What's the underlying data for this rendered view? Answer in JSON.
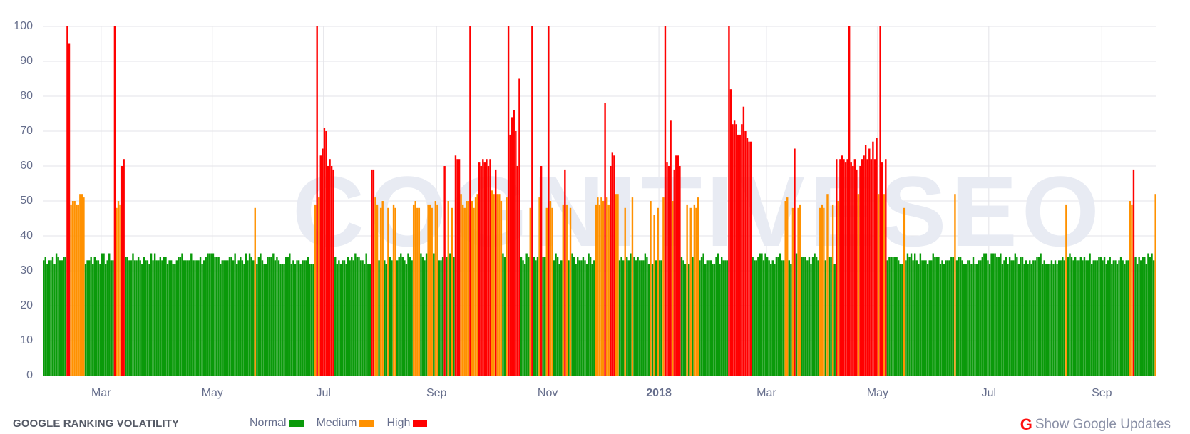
{
  "footer": {
    "title": "GOOGLE RANKING VOLATILITY",
    "show_updates_label": "Show Google Updates",
    "show_updates_icon": "google-g-icon"
  },
  "legend": [
    {
      "label": "Normal",
      "color": "#0a9a0a"
    },
    {
      "label": "Medium",
      "color": "#ff9100"
    },
    {
      "label": "High",
      "color": "#ff0000"
    }
  ],
  "watermark": "COGNITIVESEO",
  "chart_data": {
    "type": "bar",
    "title": "Google Ranking Volatility",
    "xlabel": "",
    "ylabel": "",
    "ylim": [
      0,
      100
    ],
    "yticks": [
      0,
      10,
      20,
      30,
      40,
      50,
      60,
      70,
      80,
      90,
      100
    ],
    "grid": true,
    "legend_position": "bottom",
    "x_range": [
      "2017-01-28",
      "2018-09-30"
    ],
    "xticks": [
      {
        "label": "Mar",
        "date": "2017-03-01"
      },
      {
        "label": "May",
        "date": "2017-05-01"
      },
      {
        "label": "Jul",
        "date": "2017-07-01"
      },
      {
        "label": "Sep",
        "date": "2017-09-01"
      },
      {
        "label": "Nov",
        "date": "2017-11-01"
      },
      {
        "label": "2018",
        "date": "2018-01-01",
        "bold": true
      },
      {
        "label": "Mar",
        "date": "2018-03-01"
      },
      {
        "label": "May",
        "date": "2018-05-01"
      },
      {
        "label": "Jul",
        "date": "2018-07-01"
      },
      {
        "label": "Sep",
        "date": "2018-09-01"
      }
    ],
    "thresholds": {
      "normal_max": 35,
      "medium_max": 58
    },
    "series": [
      {
        "name": "Normal",
        "color": "#0a9a0a"
      },
      {
        "name": "Medium",
        "color": "#ff9100"
      },
      {
        "name": "High",
        "color": "#ff0000"
      }
    ],
    "baseline_range": [
      32,
      35
    ],
    "spikes": [
      {
        "date": "2017-02-10",
        "value": 100
      },
      {
        "date": "2017-02-11",
        "value": 95
      },
      {
        "date": "2017-02-12",
        "value": 49
      },
      {
        "date": "2017-02-13",
        "value": 50
      },
      {
        "date": "2017-02-14",
        "value": 50
      },
      {
        "date": "2017-02-15",
        "value": 49
      },
      {
        "date": "2017-02-16",
        "value": 49
      },
      {
        "date": "2017-02-17",
        "value": 52
      },
      {
        "date": "2017-02-18",
        "value": 52
      },
      {
        "date": "2017-02-19",
        "value": 51
      },
      {
        "date": "2017-03-08",
        "value": 100
      },
      {
        "date": "2017-03-09",
        "value": 48
      },
      {
        "date": "2017-03-10",
        "value": 50
      },
      {
        "date": "2017-03-11",
        "value": 49
      },
      {
        "date": "2017-03-12",
        "value": 60
      },
      {
        "date": "2017-03-13",
        "value": 62
      },
      {
        "date": "2017-05-24",
        "value": 48
      },
      {
        "date": "2017-06-26",
        "value": 49
      },
      {
        "date": "2017-06-27",
        "value": 100
      },
      {
        "date": "2017-06-28",
        "value": 51
      },
      {
        "date": "2017-06-29",
        "value": 63
      },
      {
        "date": "2017-06-30",
        "value": 65
      },
      {
        "date": "2017-07-01",
        "value": 71
      },
      {
        "date": "2017-07-02",
        "value": 70
      },
      {
        "date": "2017-07-03",
        "value": 60
      },
      {
        "date": "2017-07-04",
        "value": 62
      },
      {
        "date": "2017-07-05",
        "value": 60
      },
      {
        "date": "2017-07-06",
        "value": 59
      },
      {
        "date": "2017-07-27",
        "value": 59
      },
      {
        "date": "2017-07-28",
        "value": 59
      },
      {
        "date": "2017-07-29",
        "value": 51
      },
      {
        "date": "2017-07-30",
        "value": 49
      },
      {
        "date": "2017-08-01",
        "value": 48
      },
      {
        "date": "2017-08-02",
        "value": 50
      },
      {
        "date": "2017-08-05",
        "value": 48
      },
      {
        "date": "2017-08-08",
        "value": 49
      },
      {
        "date": "2017-08-09",
        "value": 48
      },
      {
        "date": "2017-08-19",
        "value": 49
      },
      {
        "date": "2017-08-20",
        "value": 50
      },
      {
        "date": "2017-08-21",
        "value": 48
      },
      {
        "date": "2017-08-22",
        "value": 48
      },
      {
        "date": "2017-08-27",
        "value": 49
      },
      {
        "date": "2017-08-28",
        "value": 49
      },
      {
        "date": "2017-08-29",
        "value": 48
      },
      {
        "date": "2017-08-31",
        "value": 50
      },
      {
        "date": "2017-09-01",
        "value": 49
      },
      {
        "date": "2017-09-05",
        "value": 60
      },
      {
        "date": "2017-09-07",
        "value": 50
      },
      {
        "date": "2017-09-09",
        "value": 48
      },
      {
        "date": "2017-09-11",
        "value": 63
      },
      {
        "date": "2017-09-12",
        "value": 62
      },
      {
        "date": "2017-09-13",
        "value": 62
      },
      {
        "date": "2017-09-14",
        "value": 52
      },
      {
        "date": "2017-09-15",
        "value": 49
      },
      {
        "date": "2017-09-16",
        "value": 48
      },
      {
        "date": "2017-09-17",
        "value": 50
      },
      {
        "date": "2017-09-18",
        "value": 50
      },
      {
        "date": "2017-09-19",
        "value": 100
      },
      {
        "date": "2017-09-20",
        "value": 50
      },
      {
        "date": "2017-09-21",
        "value": 48
      },
      {
        "date": "2017-09-22",
        "value": 51
      },
      {
        "date": "2017-09-23",
        "value": 52
      },
      {
        "date": "2017-09-24",
        "value": 61
      },
      {
        "date": "2017-09-25",
        "value": 60
      },
      {
        "date": "2017-09-26",
        "value": 62
      },
      {
        "date": "2017-09-27",
        "value": 61
      },
      {
        "date": "2017-09-28",
        "value": 62
      },
      {
        "date": "2017-09-29",
        "value": 60
      },
      {
        "date": "2017-09-30",
        "value": 62
      },
      {
        "date": "2017-10-01",
        "value": 53
      },
      {
        "date": "2017-10-02",
        "value": 52
      },
      {
        "date": "2017-10-03",
        "value": 59
      },
      {
        "date": "2017-10-04",
        "value": 52
      },
      {
        "date": "2017-10-05",
        "value": 52
      },
      {
        "date": "2017-10-06",
        "value": 50
      },
      {
        "date": "2017-10-09",
        "value": 51
      },
      {
        "date": "2017-10-10",
        "value": 100
      },
      {
        "date": "2017-10-11",
        "value": 69
      },
      {
        "date": "2017-10-12",
        "value": 74
      },
      {
        "date": "2017-10-13",
        "value": 76
      },
      {
        "date": "2017-10-14",
        "value": 70
      },
      {
        "date": "2017-10-15",
        "value": 60
      },
      {
        "date": "2017-10-16",
        "value": 85
      },
      {
        "date": "2017-10-22",
        "value": 48
      },
      {
        "date": "2017-10-23",
        "value": 100
      },
      {
        "date": "2017-10-27",
        "value": 51
      },
      {
        "date": "2017-10-28",
        "value": 60
      },
      {
        "date": "2017-10-31",
        "value": 48
      },
      {
        "date": "2017-11-01",
        "value": 100
      },
      {
        "date": "2017-11-02",
        "value": 50
      },
      {
        "date": "2017-11-03",
        "value": 48
      },
      {
        "date": "2017-11-09",
        "value": 49
      },
      {
        "date": "2017-11-10",
        "value": 59
      },
      {
        "date": "2017-11-11",
        "value": 49
      },
      {
        "date": "2017-11-13",
        "value": 48
      },
      {
        "date": "2017-11-27",
        "value": 49
      },
      {
        "date": "2017-11-28",
        "value": 51
      },
      {
        "date": "2017-11-29",
        "value": 49
      },
      {
        "date": "2017-11-30",
        "value": 51
      },
      {
        "date": "2017-12-01",
        "value": 50
      },
      {
        "date": "2017-12-02",
        "value": 78
      },
      {
        "date": "2017-12-03",
        "value": 51
      },
      {
        "date": "2017-12-04",
        "value": 49
      },
      {
        "date": "2017-12-05",
        "value": 60
      },
      {
        "date": "2017-12-06",
        "value": 64
      },
      {
        "date": "2017-12-07",
        "value": 63
      },
      {
        "date": "2017-12-08",
        "value": 52
      },
      {
        "date": "2017-12-09",
        "value": 52
      },
      {
        "date": "2017-12-13",
        "value": 48
      },
      {
        "date": "2017-12-17",
        "value": 51
      },
      {
        "date": "2017-12-27",
        "value": 50
      },
      {
        "date": "2017-12-29",
        "value": 46
      },
      {
        "date": "2017-12-31",
        "value": 48
      },
      {
        "date": "2018-01-03",
        "value": 51
      },
      {
        "date": "2018-01-04",
        "value": 100
      },
      {
        "date": "2018-01-05",
        "value": 61
      },
      {
        "date": "2018-01-06",
        "value": 60
      },
      {
        "date": "2018-01-07",
        "value": 73
      },
      {
        "date": "2018-01-08",
        "value": 50
      },
      {
        "date": "2018-01-09",
        "value": 59
      },
      {
        "date": "2018-01-10",
        "value": 63
      },
      {
        "date": "2018-01-11",
        "value": 63
      },
      {
        "date": "2018-01-12",
        "value": 60
      },
      {
        "date": "2018-01-16",
        "value": 49
      },
      {
        "date": "2018-01-18",
        "value": 48
      },
      {
        "date": "2018-01-20",
        "value": 49
      },
      {
        "date": "2018-01-21",
        "value": 48
      },
      {
        "date": "2018-01-22",
        "value": 51
      },
      {
        "date": "2018-02-08",
        "value": 100
      },
      {
        "date": "2018-02-09",
        "value": 82
      },
      {
        "date": "2018-02-10",
        "value": 72
      },
      {
        "date": "2018-02-11",
        "value": 73
      },
      {
        "date": "2018-02-12",
        "value": 72
      },
      {
        "date": "2018-02-13",
        "value": 69
      },
      {
        "date": "2018-02-14",
        "value": 69
      },
      {
        "date": "2018-02-15",
        "value": 72
      },
      {
        "date": "2018-02-16",
        "value": 77
      },
      {
        "date": "2018-02-17",
        "value": 70
      },
      {
        "date": "2018-02-18",
        "value": 68
      },
      {
        "date": "2018-02-19",
        "value": 67
      },
      {
        "date": "2018-02-20",
        "value": 67
      },
      {
        "date": "2018-03-11",
        "value": 50
      },
      {
        "date": "2018-03-12",
        "value": 51
      },
      {
        "date": "2018-03-15",
        "value": 48
      },
      {
        "date": "2018-03-16",
        "value": 65
      },
      {
        "date": "2018-03-18",
        "value": 48
      },
      {
        "date": "2018-03-19",
        "value": 49
      },
      {
        "date": "2018-03-30",
        "value": 48
      },
      {
        "date": "2018-03-31",
        "value": 49
      },
      {
        "date": "2018-04-01",
        "value": 48
      },
      {
        "date": "2018-04-03",
        "value": 52
      },
      {
        "date": "2018-04-06",
        "value": 49
      },
      {
        "date": "2018-04-08",
        "value": 62
      },
      {
        "date": "2018-04-09",
        "value": 50
      },
      {
        "date": "2018-04-10",
        "value": 62
      },
      {
        "date": "2018-04-11",
        "value": 63
      },
      {
        "date": "2018-04-12",
        "value": 62
      },
      {
        "date": "2018-04-13",
        "value": 61
      },
      {
        "date": "2018-04-14",
        "value": 62
      },
      {
        "date": "2018-04-15",
        "value": 100
      },
      {
        "date": "2018-04-16",
        "value": 61
      },
      {
        "date": "2018-04-17",
        "value": 60
      },
      {
        "date": "2018-04-18",
        "value": 62
      },
      {
        "date": "2018-04-19",
        "value": 59
      },
      {
        "date": "2018-04-20",
        "value": 52
      },
      {
        "date": "2018-04-21",
        "value": 60
      },
      {
        "date": "2018-04-22",
        "value": 62
      },
      {
        "date": "2018-04-23",
        "value": 63
      },
      {
        "date": "2018-04-24",
        "value": 66
      },
      {
        "date": "2018-04-25",
        "value": 62
      },
      {
        "date": "2018-04-26",
        "value": 65
      },
      {
        "date": "2018-04-27",
        "value": 62
      },
      {
        "date": "2018-04-28",
        "value": 67
      },
      {
        "date": "2018-04-29",
        "value": 62
      },
      {
        "date": "2018-04-30",
        "value": 68
      },
      {
        "date": "2018-05-01",
        "value": 52
      },
      {
        "date": "2018-05-02",
        "value": 100
      },
      {
        "date": "2018-05-03",
        "value": 61
      },
      {
        "date": "2018-05-04",
        "value": 52
      },
      {
        "date": "2018-05-05",
        "value": 62
      },
      {
        "date": "2018-05-15",
        "value": 48
      },
      {
        "date": "2018-06-12",
        "value": 52
      },
      {
        "date": "2018-08-12",
        "value": 49
      },
      {
        "date": "2018-09-16",
        "value": 50
      },
      {
        "date": "2018-09-17",
        "value": 49
      },
      {
        "date": "2018-09-18",
        "value": 59
      },
      {
        "date": "2018-09-30",
        "value": 52
      }
    ]
  }
}
